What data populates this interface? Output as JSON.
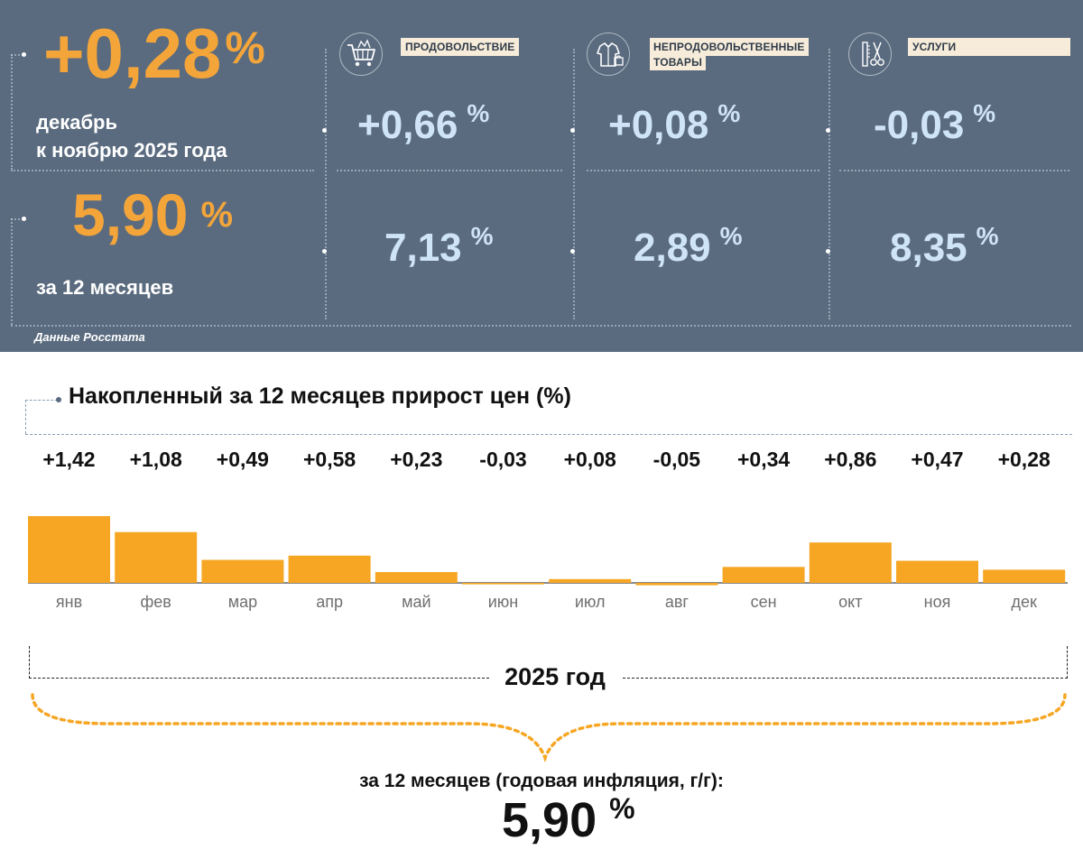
{
  "header": {
    "monthly_value": "+0,28",
    "monthly_unit": "%",
    "monthly_line1": "декабрь",
    "monthly_line2": "к ноябрю 2025 года",
    "annual_value": "5,90",
    "annual_unit": "%",
    "annual_label": "за 12 месяцев",
    "source": "Данные Росстата"
  },
  "categories": [
    {
      "icon": "shopping-cart-icon",
      "label": "ПРОДОВОЛЬСТВИЕ",
      "monthly": "+0,66",
      "annual": "7,13",
      "unit": "%"
    },
    {
      "icon": "clothing-icon",
      "label_line1": "НЕПРОДОВОЛЬСТВЕННЫЕ",
      "label_line2": "ТОВАРЫ",
      "monthly": "+0,08",
      "annual": "2,89",
      "unit": "%"
    },
    {
      "icon": "scissors-comb-icon",
      "label": "УСЛУГИ",
      "monthly": "-0,03",
      "annual": "8,35",
      "unit": "%"
    }
  ],
  "chart_data": {
    "type": "bar",
    "title": "Накопленный за 12 месяцев прирост цен (%)",
    "categories": [
      "янв",
      "фев",
      "мар",
      "апр",
      "май",
      "июн",
      "июл",
      "авг",
      "сен",
      "окт",
      "ноя",
      "дек"
    ],
    "values": [
      1.42,
      1.08,
      0.49,
      0.58,
      0.23,
      -0.03,
      0.08,
      -0.05,
      0.34,
      0.86,
      0.47,
      0.28
    ],
    "value_labels": [
      "+1,42",
      "+1,08",
      "+0,49",
      "+0,58",
      "+0,23",
      "-0,03",
      "+0,08",
      "-0,05",
      "+0,34",
      "+0,86",
      "+0,47",
      "+0,28"
    ],
    "bar_color": "#f6a623",
    "year_label": "2025 год",
    "summary_label": "за 12 месяцев (годовая инфляция, г/г):",
    "summary_value": "5,90",
    "summary_unit": "%"
  },
  "colors": {
    "panel_bg": "#5a6b7f",
    "accent_orange": "#f4a53a",
    "value_blue": "#cfe4f6"
  }
}
